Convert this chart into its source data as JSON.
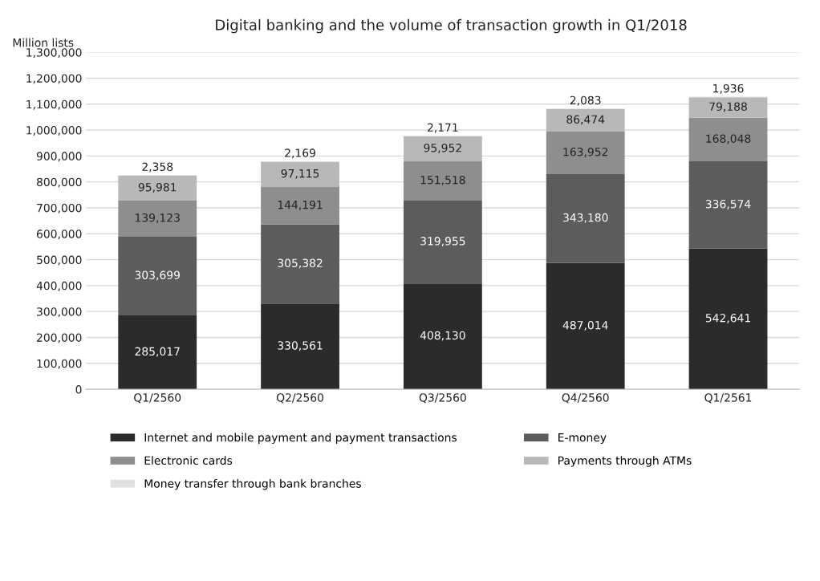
{
  "chart_data": {
    "type": "bar",
    "title": "Digital banking and the volume of transaction growth in Q1/2018",
    "ylabel": "Million lists",
    "stacked": true,
    "categories": [
      "Q1/2560",
      "Q2/2560",
      "Q3/2560",
      "Q4/2560",
      "Q1/2561"
    ],
    "series": [
      {
        "name": "Internet and mobile payment and payment transactions",
        "color": "#2b2b2b",
        "values": [
          285017,
          330561,
          408130,
          487014,
          542641
        ],
        "value_labels": [
          "285,017",
          "330,561",
          "408,130",
          "487,014",
          "542,641"
        ]
      },
      {
        "name": "E-money",
        "color": "#5c5c5c",
        "values": [
          303699,
          305382,
          319955,
          343180,
          336574
        ],
        "value_labels": [
          "303,699",
          "305,382",
          "319,955",
          "343,180",
          "336,574"
        ]
      },
      {
        "name": "Electronic cards",
        "color": "#8e8e8e",
        "values": [
          139123,
          144191,
          151518,
          163952,
          168048
        ],
        "value_labels": [
          "139,123",
          "144,191",
          "151,518",
          "163,952",
          "168,048"
        ]
      },
      {
        "name": "Payments through ATMs",
        "color": "#b8b8b8",
        "values": [
          95981,
          97115,
          95952,
          86474,
          79188
        ],
        "value_labels": [
          "95,981",
          "97,115",
          "95,952",
          "86,474",
          "79,188"
        ]
      },
      {
        "name": "Money transfer through bank branches",
        "color": "#e0e0e0",
        "values": [
          2358,
          2169,
          2171,
          2083,
          1936
        ],
        "value_labels": [
          "2,358",
          "2,169",
          "2,171",
          "2,083",
          "1,936"
        ]
      }
    ],
    "ylim": [
      0,
      1300000
    ],
    "yticks": [
      {
        "value": 0,
        "label": "0"
      },
      {
        "value": 100000,
        "label": "100,000"
      },
      {
        "value": 200000,
        "label": "200,000"
      },
      {
        "value": 300000,
        "label": "300,000"
      },
      {
        "value": 400000,
        "label": "400,000"
      },
      {
        "value": 500000,
        "label": "500,000"
      },
      {
        "value": 600000,
        "label": "600,000"
      },
      {
        "value": 700000,
        "label": "700,000"
      },
      {
        "value": 800000,
        "label": "800,000"
      },
      {
        "value": 900000,
        "label": "900,000"
      },
      {
        "value": 1000000,
        "label": "1,000,000"
      },
      {
        "value": 1100000,
        "label": "1,100,000"
      },
      {
        "value": 1200000,
        "label": "1,200,000"
      },
      {
        "value": 1300000,
        "label": "1,300,000"
      }
    ],
    "grid": "y",
    "legend": "bottom"
  }
}
